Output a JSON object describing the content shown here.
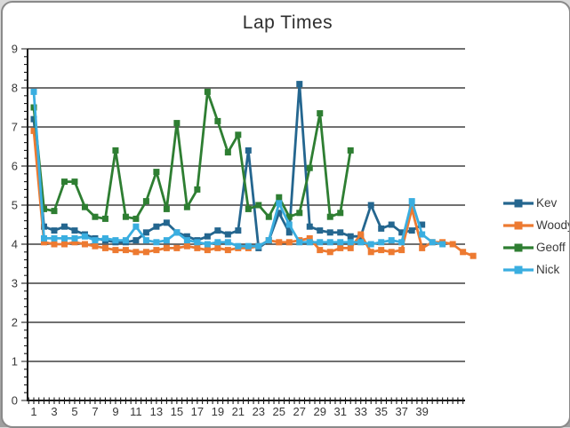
{
  "chart_data": {
    "type": "line",
    "title": "Lap Times",
    "xlabel": "",
    "ylabel": "",
    "x_start": 1,
    "x_tick_labels": [
      1,
      3,
      5,
      7,
      9,
      11,
      13,
      15,
      17,
      19,
      21,
      23,
      25,
      27,
      29,
      31,
      33,
      35,
      37,
      39
    ],
    "y_tick_labels": [
      0,
      1,
      2,
      3,
      4,
      5,
      6,
      7,
      8,
      9
    ],
    "ylim": [
      0,
      9
    ],
    "xlim": [
      0.5,
      44.5
    ],
    "grid": "horizontal",
    "legend_position": "right",
    "axis_color": "#1a1a1a",
    "series": [
      {
        "name": "Kev",
        "color": "#24668F",
        "values": [
          7.2,
          4.45,
          4.35,
          4.45,
          4.35,
          4.25,
          4.15,
          4.1,
          4.05,
          4.05,
          4.1,
          4.3,
          4.45,
          4.55,
          4.3,
          4.2,
          4.1,
          4.2,
          4.35,
          4.25,
          4.35,
          6.4,
          3.9,
          4.1,
          4.8,
          4.3,
          8.1,
          4.45,
          4.35,
          4.3,
          4.3,
          4.2,
          4.2,
          5.0,
          4.4,
          4.5,
          4.3,
          4.35,
          4.5
        ]
      },
      {
        "name": "Woody",
        "color": "#ED7A31",
        "values": [
          6.9,
          4.05,
          4.0,
          4.0,
          4.05,
          4.0,
          3.95,
          3.9,
          3.85,
          3.85,
          3.8,
          3.8,
          3.85,
          3.9,
          3.9,
          3.95,
          3.9,
          3.85,
          3.9,
          3.85,
          3.9,
          3.9,
          3.95,
          4.1,
          4.05,
          4.05,
          4.1,
          4.15,
          3.85,
          3.8,
          3.9,
          3.9,
          4.25,
          3.8,
          3.85,
          3.8,
          3.85,
          4.9,
          3.9,
          4.05,
          4.05,
          4.0,
          3.8,
          3.7
        ]
      },
      {
        "name": "Geoff",
        "color": "#2E7E32",
        "values": [
          7.5,
          4.9,
          4.85,
          5.6,
          5.6,
          4.95,
          4.7,
          4.65,
          6.4,
          4.7,
          4.65,
          5.1,
          5.85,
          4.9,
          7.1,
          4.95,
          5.4,
          7.9,
          7.15,
          6.35,
          6.8,
          4.9,
          5.0,
          4.7,
          5.2,
          4.7,
          4.8,
          5.95,
          7.35,
          4.7,
          4.8,
          6.4
        ]
      },
      {
        "name": "Nick",
        "color": "#3AAEE0",
        "values": [
          7.9,
          4.15,
          4.15,
          4.15,
          4.15,
          4.2,
          4.1,
          4.15,
          4.1,
          4.1,
          4.45,
          4.1,
          4.05,
          4.1,
          4.3,
          4.1,
          4.05,
          4.0,
          4.05,
          4.05,
          3.95,
          3.95,
          3.95,
          4.1,
          5.05,
          4.5,
          4.05,
          4.05,
          4.05,
          4.05,
          4.05,
          4.05,
          4.05,
          4.0,
          4.05,
          4.1,
          4.05,
          5.1,
          4.25,
          4.05,
          4.0
        ]
      }
    ]
  }
}
